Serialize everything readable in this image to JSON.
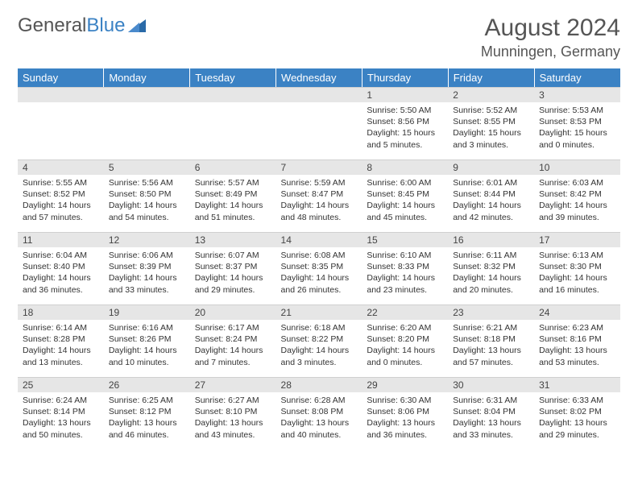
{
  "logo": {
    "text_a": "General",
    "text_b": "Blue",
    "icon_color": "#2a6aa8"
  },
  "title": "August 2024",
  "location": "Munningen, Germany",
  "colors": {
    "header_bg": "#3b82c4",
    "header_fg": "#ffffff",
    "daynum_bg": "#e6e6e6",
    "text": "#333333"
  },
  "days_of_week": [
    "Sunday",
    "Monday",
    "Tuesday",
    "Wednesday",
    "Thursday",
    "Friday",
    "Saturday"
  ],
  "weeks": [
    [
      null,
      null,
      null,
      null,
      {
        "n": "1",
        "sr": "5:50 AM",
        "ss": "8:56 PM",
        "dl": "15 hours and 5 minutes."
      },
      {
        "n": "2",
        "sr": "5:52 AM",
        "ss": "8:55 PM",
        "dl": "15 hours and 3 minutes."
      },
      {
        "n": "3",
        "sr": "5:53 AM",
        "ss": "8:53 PM",
        "dl": "15 hours and 0 minutes."
      }
    ],
    [
      {
        "n": "4",
        "sr": "5:55 AM",
        "ss": "8:52 PM",
        "dl": "14 hours and 57 minutes."
      },
      {
        "n": "5",
        "sr": "5:56 AM",
        "ss": "8:50 PM",
        "dl": "14 hours and 54 minutes."
      },
      {
        "n": "6",
        "sr": "5:57 AM",
        "ss": "8:49 PM",
        "dl": "14 hours and 51 minutes."
      },
      {
        "n": "7",
        "sr": "5:59 AM",
        "ss": "8:47 PM",
        "dl": "14 hours and 48 minutes."
      },
      {
        "n": "8",
        "sr": "6:00 AM",
        "ss": "8:45 PM",
        "dl": "14 hours and 45 minutes."
      },
      {
        "n": "9",
        "sr": "6:01 AM",
        "ss": "8:44 PM",
        "dl": "14 hours and 42 minutes."
      },
      {
        "n": "10",
        "sr": "6:03 AM",
        "ss": "8:42 PM",
        "dl": "14 hours and 39 minutes."
      }
    ],
    [
      {
        "n": "11",
        "sr": "6:04 AM",
        "ss": "8:40 PM",
        "dl": "14 hours and 36 minutes."
      },
      {
        "n": "12",
        "sr": "6:06 AM",
        "ss": "8:39 PM",
        "dl": "14 hours and 33 minutes."
      },
      {
        "n": "13",
        "sr": "6:07 AM",
        "ss": "8:37 PM",
        "dl": "14 hours and 29 minutes."
      },
      {
        "n": "14",
        "sr": "6:08 AM",
        "ss": "8:35 PM",
        "dl": "14 hours and 26 minutes."
      },
      {
        "n": "15",
        "sr": "6:10 AM",
        "ss": "8:33 PM",
        "dl": "14 hours and 23 minutes."
      },
      {
        "n": "16",
        "sr": "6:11 AM",
        "ss": "8:32 PM",
        "dl": "14 hours and 20 minutes."
      },
      {
        "n": "17",
        "sr": "6:13 AM",
        "ss": "8:30 PM",
        "dl": "14 hours and 16 minutes."
      }
    ],
    [
      {
        "n": "18",
        "sr": "6:14 AM",
        "ss": "8:28 PM",
        "dl": "14 hours and 13 minutes."
      },
      {
        "n": "19",
        "sr": "6:16 AM",
        "ss": "8:26 PM",
        "dl": "14 hours and 10 minutes."
      },
      {
        "n": "20",
        "sr": "6:17 AM",
        "ss": "8:24 PM",
        "dl": "14 hours and 7 minutes."
      },
      {
        "n": "21",
        "sr": "6:18 AM",
        "ss": "8:22 PM",
        "dl": "14 hours and 3 minutes."
      },
      {
        "n": "22",
        "sr": "6:20 AM",
        "ss": "8:20 PM",
        "dl": "14 hours and 0 minutes."
      },
      {
        "n": "23",
        "sr": "6:21 AM",
        "ss": "8:18 PM",
        "dl": "13 hours and 57 minutes."
      },
      {
        "n": "24",
        "sr": "6:23 AM",
        "ss": "8:16 PM",
        "dl": "13 hours and 53 minutes."
      }
    ],
    [
      {
        "n": "25",
        "sr": "6:24 AM",
        "ss": "8:14 PM",
        "dl": "13 hours and 50 minutes."
      },
      {
        "n": "26",
        "sr": "6:25 AM",
        "ss": "8:12 PM",
        "dl": "13 hours and 46 minutes."
      },
      {
        "n": "27",
        "sr": "6:27 AM",
        "ss": "8:10 PM",
        "dl": "13 hours and 43 minutes."
      },
      {
        "n": "28",
        "sr": "6:28 AM",
        "ss": "8:08 PM",
        "dl": "13 hours and 40 minutes."
      },
      {
        "n": "29",
        "sr": "6:30 AM",
        "ss": "8:06 PM",
        "dl": "13 hours and 36 minutes."
      },
      {
        "n": "30",
        "sr": "6:31 AM",
        "ss": "8:04 PM",
        "dl": "13 hours and 33 minutes."
      },
      {
        "n": "31",
        "sr": "6:33 AM",
        "ss": "8:02 PM",
        "dl": "13 hours and 29 minutes."
      }
    ]
  ],
  "labels": {
    "sunrise": "Sunrise:",
    "sunset": "Sunset:",
    "daylight": "Daylight:"
  }
}
